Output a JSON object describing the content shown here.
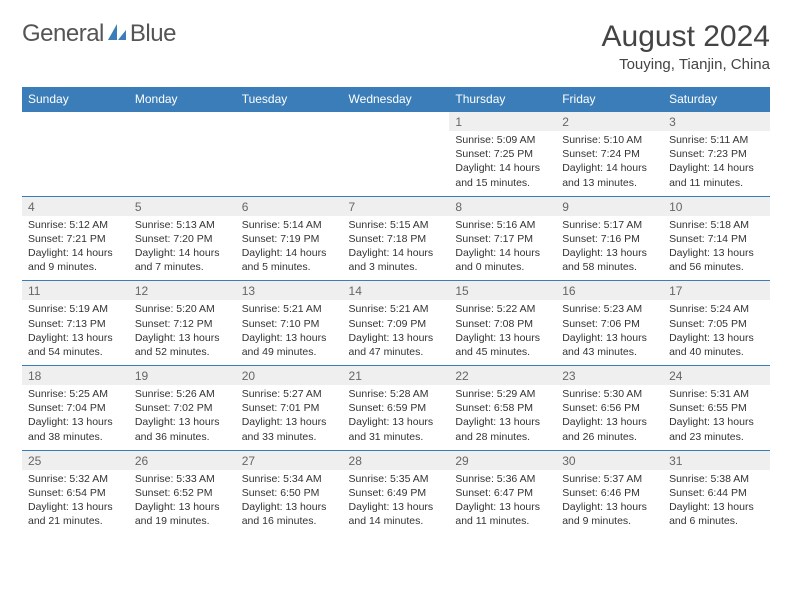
{
  "brand": {
    "text1": "General",
    "text2": "Blue",
    "logo_color": "#3a7db8"
  },
  "title": "August 2024",
  "location": "Touying, Tianjin, China",
  "colors": {
    "header_bg": "#3a7db8",
    "daynum_bg": "#efefef",
    "border": "#3a7db8"
  },
  "day_headers": [
    "Sunday",
    "Monday",
    "Tuesday",
    "Wednesday",
    "Thursday",
    "Friday",
    "Saturday"
  ],
  "weeks": [
    {
      "nums": [
        "",
        "",
        "",
        "",
        "1",
        "2",
        "3"
      ],
      "cells": [
        {
          "sunrise": "",
          "sunset": "",
          "daylight": ""
        },
        {
          "sunrise": "",
          "sunset": "",
          "daylight": ""
        },
        {
          "sunrise": "",
          "sunset": "",
          "daylight": ""
        },
        {
          "sunrise": "",
          "sunset": "",
          "daylight": ""
        },
        {
          "sunrise": "Sunrise: 5:09 AM",
          "sunset": "Sunset: 7:25 PM",
          "daylight": "Daylight: 14 hours and 15 minutes."
        },
        {
          "sunrise": "Sunrise: 5:10 AM",
          "sunset": "Sunset: 7:24 PM",
          "daylight": "Daylight: 14 hours and 13 minutes."
        },
        {
          "sunrise": "Sunrise: 5:11 AM",
          "sunset": "Sunset: 7:23 PM",
          "daylight": "Daylight: 14 hours and 11 minutes."
        }
      ]
    },
    {
      "nums": [
        "4",
        "5",
        "6",
        "7",
        "8",
        "9",
        "10"
      ],
      "cells": [
        {
          "sunrise": "Sunrise: 5:12 AM",
          "sunset": "Sunset: 7:21 PM",
          "daylight": "Daylight: 14 hours and 9 minutes."
        },
        {
          "sunrise": "Sunrise: 5:13 AM",
          "sunset": "Sunset: 7:20 PM",
          "daylight": "Daylight: 14 hours and 7 minutes."
        },
        {
          "sunrise": "Sunrise: 5:14 AM",
          "sunset": "Sunset: 7:19 PM",
          "daylight": "Daylight: 14 hours and 5 minutes."
        },
        {
          "sunrise": "Sunrise: 5:15 AM",
          "sunset": "Sunset: 7:18 PM",
          "daylight": "Daylight: 14 hours and 3 minutes."
        },
        {
          "sunrise": "Sunrise: 5:16 AM",
          "sunset": "Sunset: 7:17 PM",
          "daylight": "Daylight: 14 hours and 0 minutes."
        },
        {
          "sunrise": "Sunrise: 5:17 AM",
          "sunset": "Sunset: 7:16 PM",
          "daylight": "Daylight: 13 hours and 58 minutes."
        },
        {
          "sunrise": "Sunrise: 5:18 AM",
          "sunset": "Sunset: 7:14 PM",
          "daylight": "Daylight: 13 hours and 56 minutes."
        }
      ]
    },
    {
      "nums": [
        "11",
        "12",
        "13",
        "14",
        "15",
        "16",
        "17"
      ],
      "cells": [
        {
          "sunrise": "Sunrise: 5:19 AM",
          "sunset": "Sunset: 7:13 PM",
          "daylight": "Daylight: 13 hours and 54 minutes."
        },
        {
          "sunrise": "Sunrise: 5:20 AM",
          "sunset": "Sunset: 7:12 PM",
          "daylight": "Daylight: 13 hours and 52 minutes."
        },
        {
          "sunrise": "Sunrise: 5:21 AM",
          "sunset": "Sunset: 7:10 PM",
          "daylight": "Daylight: 13 hours and 49 minutes."
        },
        {
          "sunrise": "Sunrise: 5:21 AM",
          "sunset": "Sunset: 7:09 PM",
          "daylight": "Daylight: 13 hours and 47 minutes."
        },
        {
          "sunrise": "Sunrise: 5:22 AM",
          "sunset": "Sunset: 7:08 PM",
          "daylight": "Daylight: 13 hours and 45 minutes."
        },
        {
          "sunrise": "Sunrise: 5:23 AM",
          "sunset": "Sunset: 7:06 PM",
          "daylight": "Daylight: 13 hours and 43 minutes."
        },
        {
          "sunrise": "Sunrise: 5:24 AM",
          "sunset": "Sunset: 7:05 PM",
          "daylight": "Daylight: 13 hours and 40 minutes."
        }
      ]
    },
    {
      "nums": [
        "18",
        "19",
        "20",
        "21",
        "22",
        "23",
        "24"
      ],
      "cells": [
        {
          "sunrise": "Sunrise: 5:25 AM",
          "sunset": "Sunset: 7:04 PM",
          "daylight": "Daylight: 13 hours and 38 minutes."
        },
        {
          "sunrise": "Sunrise: 5:26 AM",
          "sunset": "Sunset: 7:02 PM",
          "daylight": "Daylight: 13 hours and 36 minutes."
        },
        {
          "sunrise": "Sunrise: 5:27 AM",
          "sunset": "Sunset: 7:01 PM",
          "daylight": "Daylight: 13 hours and 33 minutes."
        },
        {
          "sunrise": "Sunrise: 5:28 AM",
          "sunset": "Sunset: 6:59 PM",
          "daylight": "Daylight: 13 hours and 31 minutes."
        },
        {
          "sunrise": "Sunrise: 5:29 AM",
          "sunset": "Sunset: 6:58 PM",
          "daylight": "Daylight: 13 hours and 28 minutes."
        },
        {
          "sunrise": "Sunrise: 5:30 AM",
          "sunset": "Sunset: 6:56 PM",
          "daylight": "Daylight: 13 hours and 26 minutes."
        },
        {
          "sunrise": "Sunrise: 5:31 AM",
          "sunset": "Sunset: 6:55 PM",
          "daylight": "Daylight: 13 hours and 23 minutes."
        }
      ]
    },
    {
      "nums": [
        "25",
        "26",
        "27",
        "28",
        "29",
        "30",
        "31"
      ],
      "cells": [
        {
          "sunrise": "Sunrise: 5:32 AM",
          "sunset": "Sunset: 6:54 PM",
          "daylight": "Daylight: 13 hours and 21 minutes."
        },
        {
          "sunrise": "Sunrise: 5:33 AM",
          "sunset": "Sunset: 6:52 PM",
          "daylight": "Daylight: 13 hours and 19 minutes."
        },
        {
          "sunrise": "Sunrise: 5:34 AM",
          "sunset": "Sunset: 6:50 PM",
          "daylight": "Daylight: 13 hours and 16 minutes."
        },
        {
          "sunrise": "Sunrise: 5:35 AM",
          "sunset": "Sunset: 6:49 PM",
          "daylight": "Daylight: 13 hours and 14 minutes."
        },
        {
          "sunrise": "Sunrise: 5:36 AM",
          "sunset": "Sunset: 6:47 PM",
          "daylight": "Daylight: 13 hours and 11 minutes."
        },
        {
          "sunrise": "Sunrise: 5:37 AM",
          "sunset": "Sunset: 6:46 PM",
          "daylight": "Daylight: 13 hours and 9 minutes."
        },
        {
          "sunrise": "Sunrise: 5:38 AM",
          "sunset": "Sunset: 6:44 PM",
          "daylight": "Daylight: 13 hours and 6 minutes."
        }
      ]
    }
  ]
}
